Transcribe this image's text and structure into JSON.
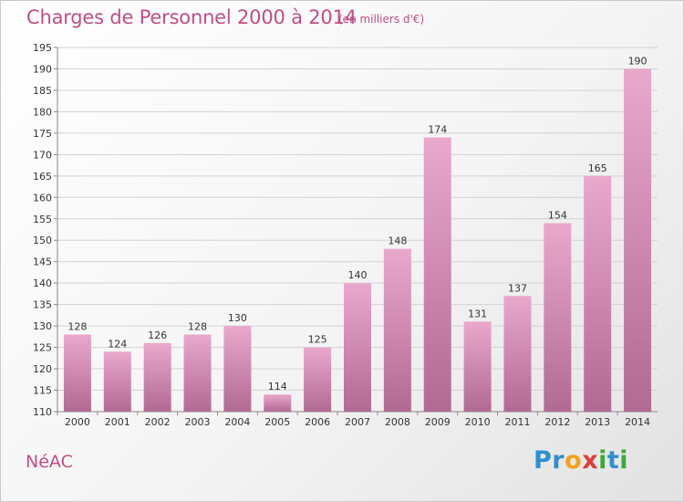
{
  "header": {
    "title": "Charges de Personnel 2000 à 2014",
    "subtitle": "(en milliers d'€)"
  },
  "footer": {
    "commune": "NéAC",
    "logo_text": "Proxiti",
    "logo_letters": [
      {
        "ch": "P",
        "color": "#2f8fd0"
      },
      {
        "ch": "r",
        "color": "#2f8fd0"
      },
      {
        "ch": "o",
        "color": "#f2a21c"
      },
      {
        "ch": "x",
        "color": "#e23b3b"
      },
      {
        "ch": "i",
        "color": "#3aa83a"
      },
      {
        "ch": "t",
        "color": "#2f8fd0"
      },
      {
        "ch": "i",
        "color": "#3aa83a"
      }
    ]
  },
  "colors": {
    "accent": "#c04f86",
    "bar_top": "#eaa8cc",
    "bar_bottom": "#b16a93",
    "grid": "#d3d3d3"
  },
  "chart_data": {
    "type": "bar",
    "title": "Charges de Personnel 2000 à 2014",
    "subtitle": "(en milliers d'€)",
    "categories": [
      "2000",
      "2001",
      "2002",
      "2003",
      "2004",
      "2005",
      "2006",
      "2007",
      "2008",
      "2009",
      "2010",
      "2011",
      "2012",
      "2013",
      "2014"
    ],
    "values": [
      128,
      124,
      126,
      128,
      130,
      114,
      125,
      140,
      148,
      174,
      131,
      137,
      154,
      165,
      190
    ],
    "ylim": [
      110,
      195
    ],
    "yticks": [
      110,
      115,
      120,
      125,
      130,
      135,
      140,
      145,
      150,
      155,
      160,
      165,
      170,
      175,
      180,
      185,
      190,
      195
    ],
    "grid": true,
    "data_labels": true,
    "xlabel": "",
    "ylabel": ""
  }
}
